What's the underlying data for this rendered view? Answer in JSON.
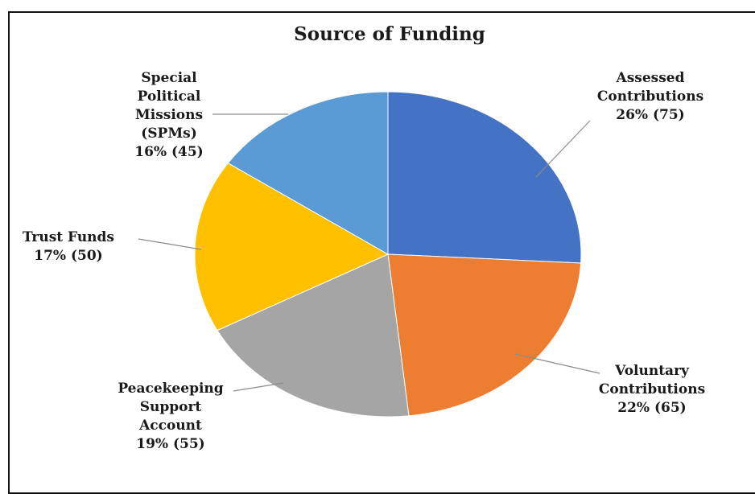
{
  "chart_data": {
    "type": "pie",
    "title": "Source of Funding",
    "slices": [
      {
        "lines": [
          "Assessed",
          "Contributions",
          "26% (75)"
        ],
        "value": 75,
        "percent": 26,
        "color": "#4472C4"
      },
      {
        "lines": [
          "Voluntary",
          "Contributions",
          "22% (65)"
        ],
        "value": 65,
        "percent": 22,
        "color": "#ED7D31"
      },
      {
        "lines": [
          "Peacekeeping",
          "Support",
          "Account",
          "19% (55)"
        ],
        "value": 55,
        "percent": 19,
        "color": "#A5A5A5"
      },
      {
        "lines": [
          "Trust  Funds",
          "17% (50)"
        ],
        "value": 50,
        "percent": 17,
        "color": "#FFC000"
      },
      {
        "lines": [
          "Special",
          "Political",
          "Missions",
          "(SPMs)",
          "16% (45)"
        ],
        "value": 45,
        "percent": 16,
        "color": "#5B9BD5"
      }
    ],
    "legend": "none"
  }
}
